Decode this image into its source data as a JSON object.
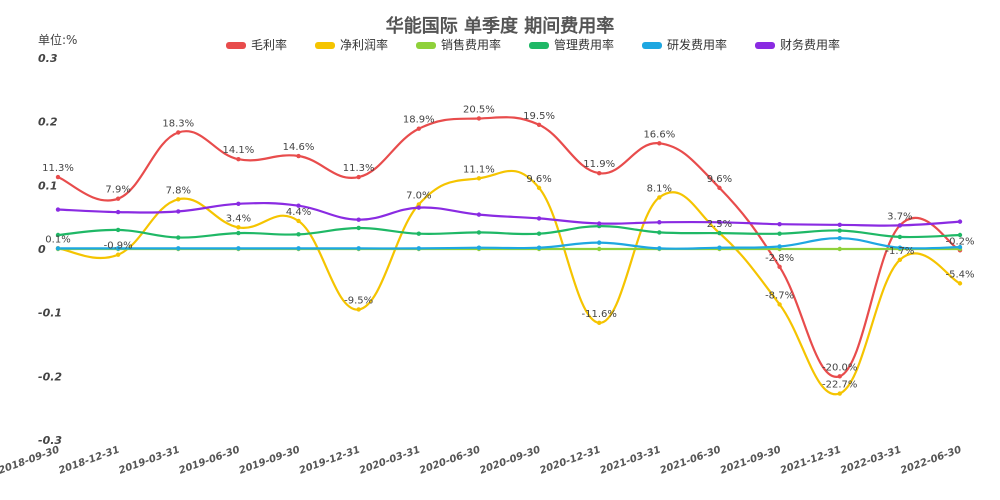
{
  "chart_data": {
    "type": "line",
    "title": "华能国际 单季度 期间费用率",
    "unit_label": "单位:%",
    "ylim": [
      -0.3,
      0.3
    ],
    "yticks": [
      -0.3,
      -0.2,
      -0.1,
      0,
      0.1,
      0.2,
      0.3
    ],
    "ytick_labels": [
      "-0.3",
      "-0.2",
      "-0.1",
      "0",
      "0.1",
      "0.2",
      "0.3"
    ],
    "categories": [
      "2018-09-30",
      "2018-12-31",
      "2019-03-31",
      "2019-06-30",
      "2019-09-30",
      "2019-12-31",
      "2020-03-31",
      "2020-06-30",
      "2020-09-30",
      "2020-12-31",
      "2021-03-31",
      "2021-06-30",
      "2021-09-30",
      "2021-12-31",
      "2022-03-31",
      "2022-06-30"
    ],
    "legend_position": "top-center",
    "grid": false,
    "series": [
      {
        "name": "毛利率",
        "color": "#e84c4c",
        "values": [
          0.113,
          0.079,
          0.183,
          0.141,
          0.146,
          0.113,
          0.189,
          0.205,
          0.195,
          0.119,
          0.166,
          0.096,
          -0.028,
          -0.2,
          0.037,
          -0.002
        ],
        "labels": [
          "11.3%",
          "7.9%",
          "18.3%",
          "14.1%",
          "14.6%",
          "11.3%",
          "18.9%",
          "20.5%",
          "19.5%",
          "11.9%",
          "16.6%",
          "9.6%",
          "-2.8%",
          "-20.0%",
          "3.7%",
          "-0.2%"
        ]
      },
      {
        "name": "净利润率",
        "color": "#f5c400",
        "values": [
          0.001,
          -0.009,
          0.078,
          0.034,
          0.044,
          -0.095,
          0.07,
          0.111,
          0.096,
          -0.116,
          0.081,
          0.025,
          -0.087,
          -0.227,
          -0.017,
          -0.054
        ],
        "labels": [
          "0.1%",
          "-0.9%",
          "7.8%",
          "3.4%",
          "4.4%",
          "-9.5%",
          "7.0%",
          "11.1%",
          "9.6%",
          "-11.6%",
          "8.1%",
          "2.5%",
          "-8.7%",
          "-22.7%",
          "-1.7%",
          "-5.4%"
        ]
      },
      {
        "name": "销售费用率",
        "color": "#8fd13a",
        "values": [
          0,
          0,
          0,
          0,
          0,
          0,
          0,
          0,
          0,
          0,
          0,
          0,
          0,
          0,
          0,
          0
        ]
      },
      {
        "name": "管理费用率",
        "color": "#1fb866",
        "values": [
          0.022,
          0.03,
          0.018,
          0.025,
          0.023,
          0.033,
          0.024,
          0.026,
          0.024,
          0.036,
          0.026,
          0.025,
          0.024,
          0.029,
          0.019,
          0.022
        ]
      },
      {
        "name": "研发费用率",
        "color": "#1ea7e1",
        "values": [
          0.001,
          0.001,
          0.001,
          0.001,
          0.001,
          0.001,
          0.001,
          0.002,
          0.002,
          0.01,
          0.001,
          0.002,
          0.004,
          0.017,
          0.002,
          0.003
        ]
      },
      {
        "name": "财务费用率",
        "color": "#8a2be2",
        "values": [
          0.062,
          0.058,
          0.059,
          0.071,
          0.068,
          0.046,
          0.065,
          0.054,
          0.048,
          0.04,
          0.042,
          0.042,
          0.039,
          0.038,
          0.037,
          0.043
        ]
      }
    ]
  }
}
